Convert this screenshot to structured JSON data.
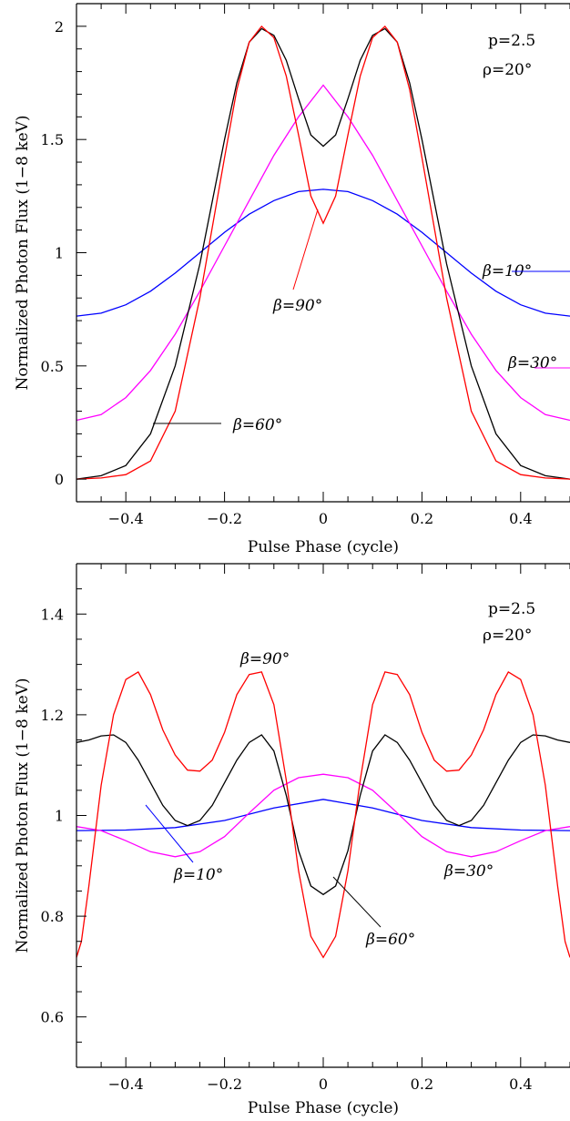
{
  "chart_data": [
    {
      "type": "line",
      "xlabel": "Pulse Phase (cycle)",
      "ylabel": "Normalized Photon Flux (1−8 keV)",
      "xlim": [
        -0.5,
        0.5
      ],
      "ylim": [
        -0.1,
        2.1
      ],
      "x_ticks": [
        -0.4,
        -0.2,
        0,
        0.2,
        0.4
      ],
      "x_tick_labels": [
        "−0.4",
        "−0.2",
        "0",
        "0.2",
        "0.4"
      ],
      "y_ticks": [
        0,
        0.5,
        1,
        1.5,
        2
      ],
      "y_tick_labels": [
        "0",
        "0.5",
        "1",
        "1.5",
        "2"
      ],
      "grid": false,
      "annotations": [
        "p=2.5",
        "ρ=20°"
      ],
      "series": [
        {
          "name": "β=10°",
          "color": "#0000ff",
          "x": [
            -0.5,
            -0.45,
            -0.4,
            -0.35,
            -0.3,
            -0.25,
            -0.2,
            -0.15,
            -0.1,
            -0.05,
            0,
            0.05,
            0.1,
            0.15,
            0.2,
            0.25,
            0.3,
            0.35,
            0.4,
            0.45,
            0.5
          ],
          "values": [
            0.72,
            0.733,
            0.77,
            0.83,
            0.91,
            1.0,
            1.09,
            1.17,
            1.23,
            1.27,
            1.28,
            1.27,
            1.23,
            1.17,
            1.09,
            1.0,
            0.91,
            0.83,
            0.77,
            0.733,
            0.72
          ]
        },
        {
          "name": "β=30°",
          "color": "#ff00ff",
          "x": [
            -0.5,
            -0.45,
            -0.4,
            -0.35,
            -0.3,
            -0.25,
            -0.2,
            -0.15,
            -0.1,
            -0.05,
            0,
            0.05,
            0.1,
            0.15,
            0.2,
            0.25,
            0.3,
            0.35,
            0.4,
            0.45,
            0.5
          ],
          "values": [
            0.26,
            0.285,
            0.36,
            0.48,
            0.64,
            0.83,
            1.03,
            1.23,
            1.43,
            1.6,
            1.74,
            1.6,
            1.43,
            1.23,
            1.03,
            0.83,
            0.64,
            0.48,
            0.36,
            0.285,
            0.26
          ]
        },
        {
          "name": "β=60°",
          "color": "#000000",
          "x": [
            -0.5,
            -0.45,
            -0.4,
            -0.35,
            -0.3,
            -0.25,
            -0.2,
            -0.175,
            -0.15,
            -0.125,
            -0.1,
            -0.075,
            -0.05,
            -0.025,
            0,
            0.025,
            0.05,
            0.075,
            0.1,
            0.125,
            0.15,
            0.175,
            0.2,
            0.25,
            0.3,
            0.35,
            0.4,
            0.45,
            0.5
          ],
          "values": [
            0.0,
            0.015,
            0.06,
            0.2,
            0.5,
            0.95,
            1.5,
            1.75,
            1.93,
            1.99,
            1.96,
            1.85,
            1.68,
            1.52,
            1.47,
            1.52,
            1.68,
            1.85,
            1.96,
            1.99,
            1.93,
            1.75,
            1.5,
            0.95,
            0.5,
            0.2,
            0.06,
            0.015,
            0.0
          ]
        },
        {
          "name": "β=90°",
          "color": "#ff0000",
          "x": [
            -0.5,
            -0.45,
            -0.4,
            -0.35,
            -0.3,
            -0.25,
            -0.2,
            -0.175,
            -0.15,
            -0.125,
            -0.1,
            -0.075,
            -0.05,
            -0.025,
            0,
            0.025,
            0.05,
            0.075,
            0.1,
            0.125,
            0.15,
            0.175,
            0.2,
            0.25,
            0.3,
            0.35,
            0.4,
            0.45,
            0.5
          ],
          "values": [
            0.0,
            0.005,
            0.02,
            0.08,
            0.3,
            0.8,
            1.42,
            1.72,
            1.93,
            2.0,
            1.95,
            1.78,
            1.52,
            1.25,
            1.13,
            1.25,
            1.52,
            1.78,
            1.95,
            2.0,
            1.93,
            1.72,
            1.42,
            0.8,
            0.3,
            0.08,
            0.02,
            0.005,
            0.0
          ]
        }
      ]
    },
    {
      "type": "line",
      "xlabel": "Pulse Phase (cycle)",
      "ylabel": "Normalized Photon Flux (1−8 keV)",
      "xlim": [
        -0.5,
        0.5
      ],
      "ylim": [
        0.5,
        1.5
      ],
      "x_ticks": [
        -0.4,
        -0.2,
        0,
        0.2,
        0.4
      ],
      "x_tick_labels": [
        "−0.4",
        "−0.2",
        "0",
        "0.2",
        "0.4"
      ],
      "y_ticks": [
        0.6,
        0.8,
        1,
        1.2,
        1.4
      ],
      "y_tick_labels": [
        "0.6",
        "0.8",
        "1",
        "1.2",
        "1.4"
      ],
      "grid": false,
      "annotations": [
        "p=2.5",
        "ρ=20°"
      ],
      "series": [
        {
          "name": "β=10°",
          "color": "#0000ff",
          "x": [
            -0.5,
            -0.4,
            -0.3,
            -0.2,
            -0.1,
            0,
            0.1,
            0.2,
            0.3,
            0.4,
            0.5
          ],
          "values": [
            0.97,
            0.971,
            0.976,
            0.99,
            1.015,
            1.032,
            1.015,
            0.99,
            0.976,
            0.971,
            0.97
          ]
        },
        {
          "name": "β=30°",
          "color": "#ff00ff",
          "x": [
            -0.5,
            -0.45,
            -0.4,
            -0.35,
            -0.3,
            -0.25,
            -0.2,
            -0.15,
            -0.1,
            -0.05,
            0,
            0.05,
            0.1,
            0.15,
            0.2,
            0.25,
            0.3,
            0.35,
            0.4,
            0.45,
            0.5
          ],
          "values": [
            0.978,
            0.97,
            0.95,
            0.928,
            0.918,
            0.928,
            0.958,
            1.005,
            1.05,
            1.075,
            1.082,
            1.075,
            1.05,
            1.005,
            0.958,
            0.928,
            0.918,
            0.928,
            0.95,
            0.97,
            0.978
          ]
        },
        {
          "name": "β=60°",
          "color": "#000000",
          "x": [
            -0.5,
            -0.475,
            -0.45,
            -0.425,
            -0.4,
            -0.375,
            -0.35,
            -0.325,
            -0.3,
            -0.275,
            -0.25,
            -0.225,
            -0.2,
            -0.175,
            -0.15,
            -0.125,
            -0.1,
            -0.075,
            -0.05,
            -0.025,
            0,
            0.025,
            0.05,
            0.075,
            0.1,
            0.125,
            0.15,
            0.175,
            0.2,
            0.225,
            0.25,
            0.275,
            0.3,
            0.325,
            0.35,
            0.375,
            0.4,
            0.425,
            0.45,
            0.475,
            0.5
          ],
          "values": [
            1.145,
            1.15,
            1.158,
            1.16,
            1.145,
            1.11,
            1.065,
            1.02,
            0.99,
            0.98,
            0.99,
            1.02,
            1.065,
            1.11,
            1.145,
            1.16,
            1.128,
            1.04,
            0.93,
            0.86,
            0.843,
            0.86,
            0.93,
            1.04,
            1.128,
            1.16,
            1.145,
            1.11,
            1.065,
            1.02,
            0.99,
            0.98,
            0.99,
            1.02,
            1.065,
            1.11,
            1.145,
            1.16,
            1.158,
            1.15,
            1.145
          ]
        },
        {
          "name": "β=90°",
          "color": "#ff0000",
          "x": [
            -0.5,
            -0.49,
            -0.475,
            -0.45,
            -0.425,
            -0.4,
            -0.375,
            -0.35,
            -0.325,
            -0.3,
            -0.275,
            -0.25,
            -0.225,
            -0.2,
            -0.175,
            -0.15,
            -0.125,
            -0.1,
            -0.075,
            -0.05,
            -0.025,
            0,
            0.025,
            0.05,
            0.075,
            0.1,
            0.125,
            0.15,
            0.175,
            0.2,
            0.225,
            0.25,
            0.275,
            0.3,
            0.325,
            0.35,
            0.375,
            0.4,
            0.425,
            0.45,
            0.475,
            0.49,
            0.5
          ],
          "values": [
            0.718,
            0.75,
            0.86,
            1.06,
            1.2,
            1.27,
            1.285,
            1.24,
            1.17,
            1.12,
            1.09,
            1.088,
            1.11,
            1.165,
            1.24,
            1.28,
            1.285,
            1.22,
            1.07,
            0.89,
            0.76,
            0.718,
            0.76,
            0.89,
            1.07,
            1.22,
            1.285,
            1.28,
            1.24,
            1.165,
            1.11,
            1.088,
            1.09,
            1.12,
            1.17,
            1.24,
            1.285,
            1.27,
            1.2,
            1.06,
            0.86,
            0.75,
            0.718
          ]
        }
      ]
    }
  ]
}
